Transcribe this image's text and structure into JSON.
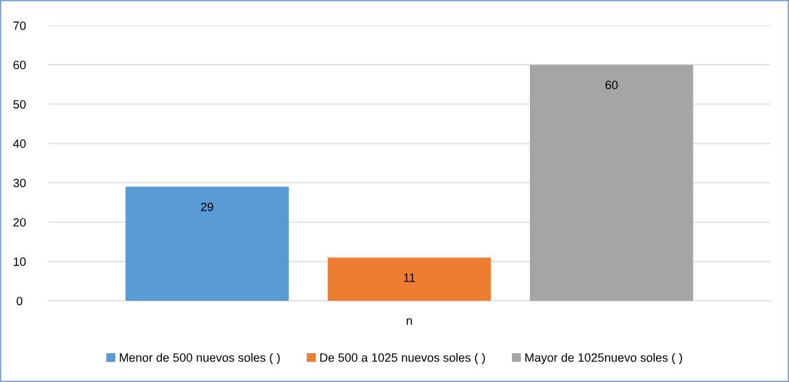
{
  "chart_data": {
    "type": "bar",
    "categories": [
      "n"
    ],
    "series": [
      {
        "name": "Menor de 500 nuevos soles ( )",
        "color": "#5b9bd5",
        "values": [
          29
        ]
      },
      {
        "name": "De 500 a 1025 nuevos soles ( )",
        "color": "#ed7d31",
        "values": [
          11
        ]
      },
      {
        "name": "Mayor de 1025nuevo soles ( )",
        "color": "#a5a5a5",
        "values": [
          60
        ]
      }
    ],
    "ylim": [
      0,
      70
    ],
    "yticks": [
      0,
      10,
      20,
      30,
      40,
      50,
      60,
      70
    ],
    "grid": "y",
    "legend": "bottom",
    "data_labels": true
  }
}
